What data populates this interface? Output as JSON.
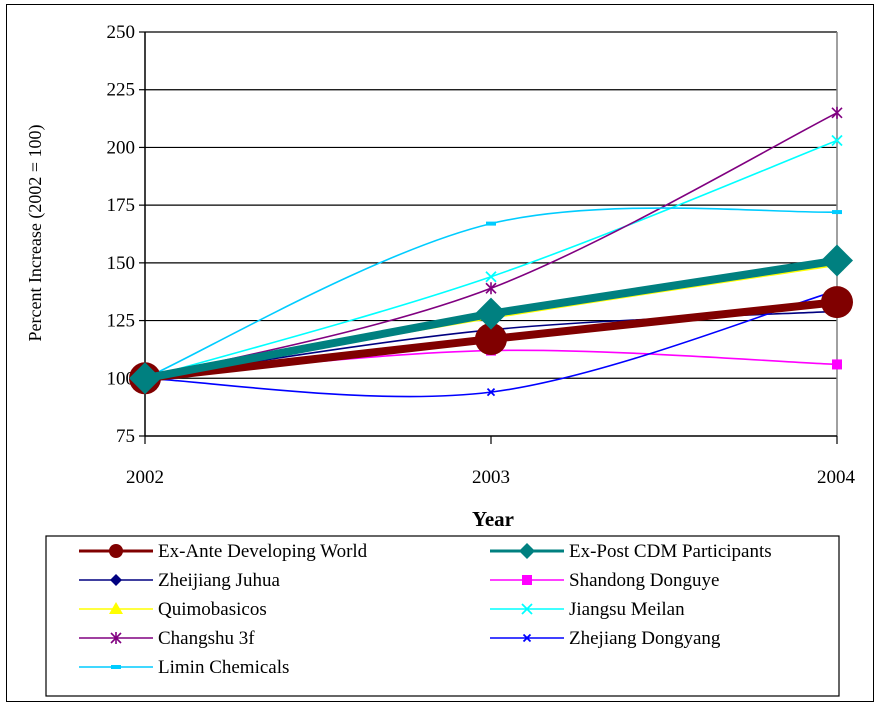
{
  "chart_data": {
    "type": "line",
    "title": "",
    "xlabel": "Year",
    "ylabel": "Percent Increase (2002 = 100)",
    "x": [
      "2002",
      "2003",
      "2004"
    ],
    "ylim": [
      75,
      250
    ],
    "yticks": [
      75,
      100,
      125,
      150,
      175,
      200,
      225,
      250
    ],
    "grid": "horizontal",
    "legend_position": "bottom",
    "series": [
      {
        "name": "Ex-Ante Developing World",
        "values": [
          100,
          117,
          133
        ],
        "color": "#800000",
        "marker": "circle",
        "emphasis": "thick"
      },
      {
        "name": "Ex-Post CDM Participants",
        "values": [
          100,
          128,
          151
        ],
        "color": "#008080",
        "marker": "diamond",
        "emphasis": "thick"
      },
      {
        "name": "Zheijiang Juhua",
        "values": [
          100,
          121,
          129
        ],
        "color": "#000080",
        "marker": "diamond"
      },
      {
        "name": "Shandong Donguye",
        "values": [
          100,
          112,
          106
        ],
        "color": "#ff00ff",
        "marker": "square"
      },
      {
        "name": "Quimobasicos",
        "values": [
          100,
          126,
          149
        ],
        "color": "#ffff00",
        "marker": "triangle"
      },
      {
        "name": "Jiangsu Meilan",
        "values": [
          100,
          144,
          203
        ],
        "color": "#00ffff",
        "marker": "x"
      },
      {
        "name": "Changshu 3f",
        "values": [
          100,
          139,
          215
        ],
        "color": "#800080",
        "marker": "star"
      },
      {
        "name": "Zhejiang Dongyang",
        "values": [
          100,
          94,
          138
        ],
        "color": "#0000ff",
        "marker": "x-small"
      },
      {
        "name": "Limin Chemicals",
        "values": [
          100,
          167,
          172
        ],
        "color": "#00ccff",
        "marker": "dash"
      }
    ]
  }
}
